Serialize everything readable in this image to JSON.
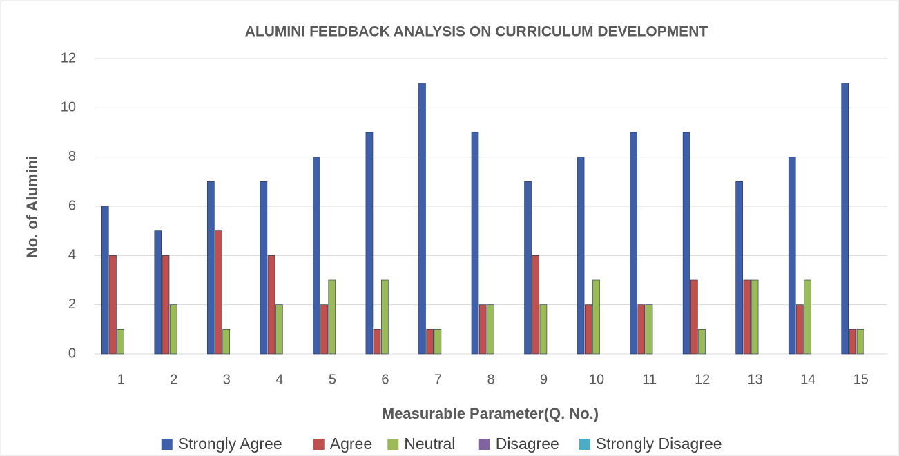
{
  "chart_data": {
    "type": "bar",
    "title": "ALUMINI FEEDBACK ANALYSIS ON CURRICULUM DEVELOPMENT",
    "x_label": "Measurable Parameter(Q. No.)",
    "y_label": "No. of Alumini",
    "categories": [
      "1",
      "2",
      "3",
      "4",
      "5",
      "6",
      "7",
      "8",
      "9",
      "10",
      "11",
      "12",
      "13",
      "14",
      "15"
    ],
    "series": [
      {
        "name": "Strongly Agree",
        "color": "#3f5fa8",
        "values": [
          6,
          5,
          7,
          7,
          8,
          9,
          11,
          9,
          7,
          8,
          9,
          9,
          7,
          8,
          11
        ]
      },
      {
        "name": "Agree",
        "color": "#c0504d",
        "values": [
          4,
          4,
          5,
          4,
          2,
          1,
          1,
          2,
          4,
          2,
          2,
          3,
          3,
          2,
          1
        ]
      },
      {
        "name": "Neutral",
        "color": "#9bbb59",
        "values": [
          1,
          2,
          1,
          2,
          3,
          3,
          1,
          2,
          2,
          3,
          2,
          1,
          3,
          3,
          1
        ]
      },
      {
        "name": "Disagree",
        "color": "#8064a2",
        "values": [
          0,
          0,
          0,
          0,
          0,
          0,
          0,
          0,
          0,
          0,
          0,
          0,
          0,
          0,
          0
        ]
      },
      {
        "name": "Strongly Disagree",
        "color": "#4bacc6",
        "values": [
          0,
          0,
          0,
          0,
          0,
          0,
          0,
          0,
          0,
          0,
          0,
          0,
          0,
          0,
          0
        ]
      }
    ],
    "ylim": [
      0,
      12
    ],
    "yticks": [
      0,
      2,
      4,
      6,
      8,
      10,
      12
    ],
    "grid": true,
    "legend": "bottom"
  }
}
